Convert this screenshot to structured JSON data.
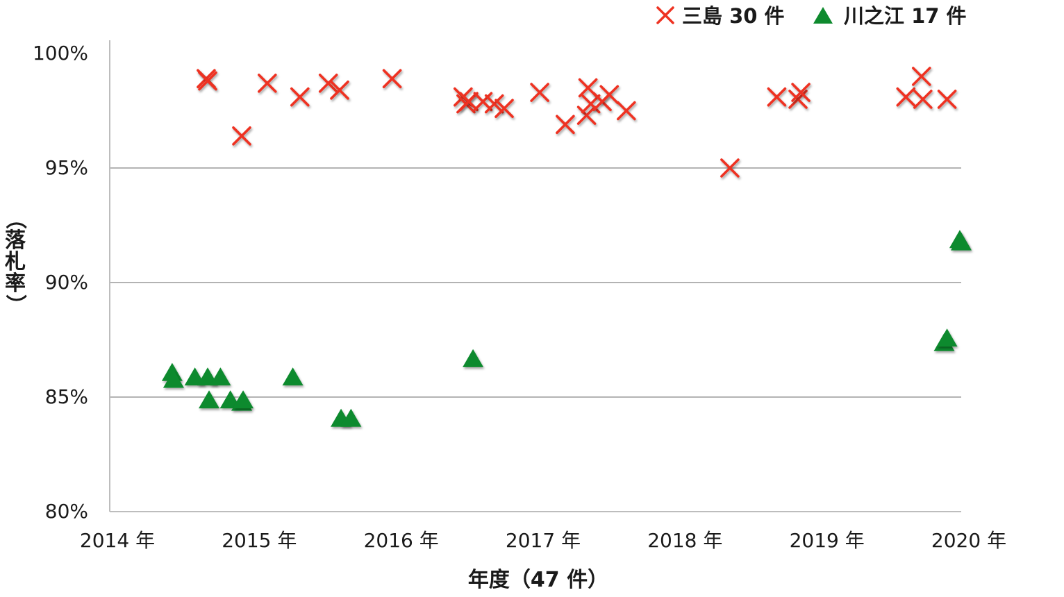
{
  "chart_data": {
    "type": "scatter",
    "title": "",
    "xlabel": "年度（47 件）",
    "ylabel": "（落札率）",
    "xlim": [
      2014,
      2020
    ],
    "ylim": [
      80,
      100
    ],
    "xticks": [
      2014,
      2015,
      2016,
      2017,
      2018,
      2019,
      2020
    ],
    "xtick_labels": [
      "2014 年",
      "2015 年",
      "2016 年",
      "2017 年",
      "2018 年",
      "2019 年",
      "2020 年"
    ],
    "yticks": [
      80,
      85,
      90,
      95,
      100
    ],
    "ytick_labels": [
      "80%",
      "85%",
      "90%",
      "95%",
      "100%"
    ],
    "grid": "horizontal",
    "legend_position": "top-right",
    "series": [
      {
        "name": "三島 30 件",
        "marker": "x",
        "color": "#ee3322",
        "points": [
          {
            "x": 2014.68,
            "y": 98.9
          },
          {
            "x": 2014.69,
            "y": 98.8
          },
          {
            "x": 2014.93,
            "y": 96.4
          },
          {
            "x": 2015.11,
            "y": 98.7
          },
          {
            "x": 2015.34,
            "y": 98.1
          },
          {
            "x": 2015.54,
            "y": 98.7
          },
          {
            "x": 2015.62,
            "y": 98.4
          },
          {
            "x": 2015.99,
            "y": 98.9
          },
          {
            "x": 2016.49,
            "y": 98.1
          },
          {
            "x": 2016.51,
            "y": 97.8
          },
          {
            "x": 2016.53,
            "y": 97.9
          },
          {
            "x": 2016.63,
            "y": 97.9
          },
          {
            "x": 2016.71,
            "y": 97.8
          },
          {
            "x": 2016.78,
            "y": 97.6
          },
          {
            "x": 2017.03,
            "y": 98.3
          },
          {
            "x": 2017.21,
            "y": 96.9
          },
          {
            "x": 2017.36,
            "y": 97.3
          },
          {
            "x": 2017.37,
            "y": 98.5
          },
          {
            "x": 2017.39,
            "y": 97.8
          },
          {
            "x": 2017.47,
            "y": 97.9
          },
          {
            "x": 2017.52,
            "y": 98.2
          },
          {
            "x": 2017.64,
            "y": 97.5
          },
          {
            "x": 2018.37,
            "y": 95.0
          },
          {
            "x": 2018.7,
            "y": 98.1
          },
          {
            "x": 2018.85,
            "y": 98.0
          },
          {
            "x": 2018.87,
            "y": 98.3
          },
          {
            "x": 2019.61,
            "y": 98.1
          },
          {
            "x": 2019.72,
            "y": 99.0
          },
          {
            "x": 2019.73,
            "y": 98.0
          },
          {
            "x": 2019.9,
            "y": 98.0
          }
        ]
      },
      {
        "name": "川之江 17 件",
        "marker": "triangle",
        "color": "#0e8a2e",
        "points": [
          {
            "x": 2014.44,
            "y": 86.1
          },
          {
            "x": 2014.45,
            "y": 85.8
          },
          {
            "x": 2014.6,
            "y": 85.9
          },
          {
            "x": 2014.69,
            "y": 85.9
          },
          {
            "x": 2014.7,
            "y": 84.9
          },
          {
            "x": 2014.78,
            "y": 85.9
          },
          {
            "x": 2014.85,
            "y": 84.9
          },
          {
            "x": 2014.93,
            "y": 84.8
          },
          {
            "x": 2014.94,
            "y": 84.9
          },
          {
            "x": 2015.29,
            "y": 85.9
          },
          {
            "x": 2015.63,
            "y": 84.1
          },
          {
            "x": 2015.7,
            "y": 84.1
          },
          {
            "x": 2016.56,
            "y": 86.7
          },
          {
            "x": 2019.88,
            "y": 87.4
          },
          {
            "x": 2019.9,
            "y": 87.6
          },
          {
            "x": 2019.99,
            "y": 91.9
          },
          {
            "x": 2020.0,
            "y": 91.8
          }
        ]
      }
    ]
  }
}
